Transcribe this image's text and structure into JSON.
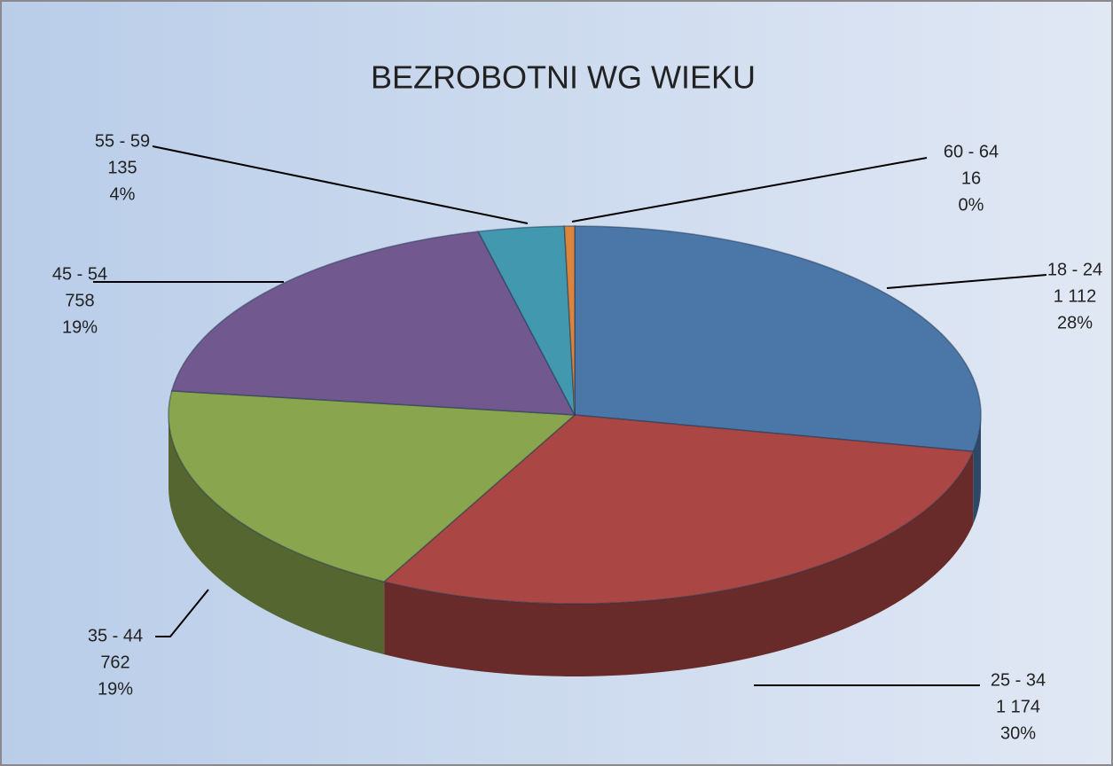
{
  "chart_data": {
    "type": "pie3d",
    "title": "BEZROBOTNI WG WIEKU",
    "categories": [
      "18 - 24",
      "25 - 34",
      "35 - 44",
      "45 - 54",
      "55 - 59",
      "60 - 64"
    ],
    "values": [
      1112,
      1174,
      762,
      758,
      135,
      16
    ],
    "value_labels": [
      "1 112",
      "1 174",
      "762",
      "758",
      "135",
      "16"
    ],
    "percents": [
      28,
      30,
      19,
      19,
      4,
      0
    ],
    "percent_labels": [
      "28%",
      "30%",
      "19%",
      "19%",
      "4%",
      "0%"
    ],
    "colors": [
      "#4a76a8",
      "#aa4643",
      "#89a54e",
      "#71588f",
      "#4198af",
      "#db843d"
    ]
  }
}
